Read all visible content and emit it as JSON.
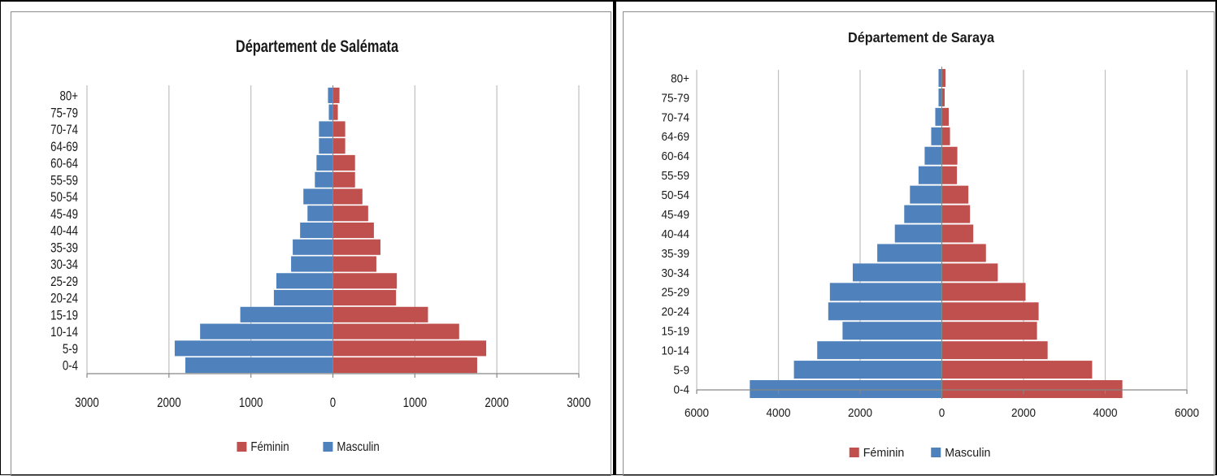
{
  "colors": {
    "feminin": "#c0504d",
    "masculin": "#4f81bd",
    "grid": "#bfbfbf",
    "axis": "#868686"
  },
  "chart_data": [
    {
      "type": "bar",
      "orientation": "horizontal",
      "title": "Département de Salémata",
      "categories": [
        "0-4",
        "5-9",
        "10-14",
        "15-19",
        "20-24",
        "25-29",
        "30-34",
        "35-39",
        "40-44",
        "45-49",
        "50-54",
        "55-59",
        "60-64",
        "64-69",
        "70-74",
        "75-79",
        "80+"
      ],
      "series": [
        {
          "name": "Féminin",
          "color": "#c0504d",
          "values": [
            1760,
            1870,
            1540,
            1160,
            770,
            780,
            530,
            580,
            500,
            430,
            360,
            270,
            270,
            150,
            150,
            60,
            80
          ]
        },
        {
          "name": "Masculin",
          "color": "#4f81bd",
          "values": [
            -1800,
            -1930,
            -1620,
            -1130,
            -720,
            -690,
            -510,
            -490,
            -400,
            -310,
            -360,
            -220,
            -200,
            -170,
            -170,
            -50,
            -60
          ]
        }
      ],
      "xlim": [
        -3000,
        3000
      ],
      "xticks": [
        -3000,
        -2000,
        -1000,
        0,
        1000,
        2000,
        3000
      ],
      "xtick_labels": [
        "3000",
        "2000",
        "1000",
        "0",
        "1000",
        "2000",
        "3000"
      ],
      "grid": true,
      "legend_position": "bottom"
    },
    {
      "type": "bar",
      "orientation": "horizontal",
      "title": "Département de Saraya",
      "categories": [
        "0-4",
        "5-9",
        "10-14",
        "15-19",
        "20-24",
        "25-29",
        "30-34",
        "35-39",
        "40-44",
        "45-49",
        "50-54",
        "55-59",
        "60-64",
        "64-69",
        "70-74",
        "75-79",
        "80+"
      ],
      "series": [
        {
          "name": "Féminin",
          "color": "#c0504d",
          "values": [
            4420,
            3680,
            2590,
            2330,
            2370,
            2050,
            1370,
            1080,
            770,
            690,
            650,
            370,
            380,
            200,
            170,
            70,
            90
          ]
        },
        {
          "name": "Masculin",
          "color": "#4f81bd",
          "values": [
            -4700,
            -3620,
            -3050,
            -2430,
            -2780,
            -2740,
            -2180,
            -1580,
            -1150,
            -920,
            -780,
            -570,
            -420,
            -260,
            -160,
            -80,
            -80
          ]
        }
      ],
      "xlim": [
        -6000,
        6000
      ],
      "xticks": [
        -6000,
        -4000,
        -2000,
        0,
        2000,
        4000,
        6000
      ],
      "xtick_labels": [
        "6000",
        "4000",
        "2000",
        "0",
        "2000",
        "4000",
        "6000"
      ],
      "grid": true,
      "legend_position": "bottom"
    }
  ]
}
